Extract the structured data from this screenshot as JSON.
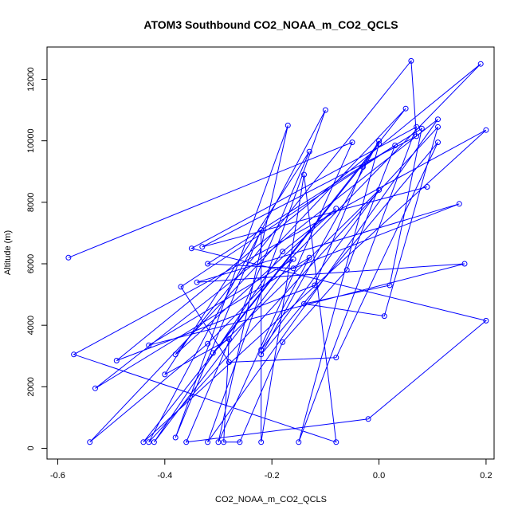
{
  "chart_data": {
    "type": "line",
    "title": "ATOM3 Southbound CO2_NOAA_m_CO2_QCLS",
    "xlabel": "CO2_NOAA_m_CO2_QCLS",
    "ylabel": "Altitude (m)",
    "xlim": [
      -0.62,
      0.215
    ],
    "ylim": [
      -350,
      13050
    ],
    "xticks": [
      -0.6,
      -0.4,
      -0.2,
      0.0,
      0.2
    ],
    "xtick_labels": [
      "-0.6",
      "-0.4",
      "-0.2",
      "0.0",
      "0.2"
    ],
    "yticks": [
      0,
      2000,
      4000,
      6000,
      8000,
      10000,
      12000
    ],
    "ytick_labels": [
      "0",
      "2000",
      "4000",
      "6000",
      "8000",
      "10000",
      "12000"
    ],
    "grid": false,
    "series": [
      {
        "color": "#0000ff",
        "marker": "open-circle",
        "points": [
          {
            "x": -0.58,
            "y": 6200
          },
          {
            "x": -0.05,
            "y": 9950
          },
          {
            "x": -0.3,
            "y": 200
          },
          {
            "x": -0.17,
            "y": 10500
          },
          {
            "x": -0.38,
            "y": 350
          },
          {
            "x": -0.22,
            "y": 7100
          },
          {
            "x": -0.22,
            "y": 200
          },
          {
            "x": -0.14,
            "y": 8900
          },
          {
            "x": -0.08,
            "y": 200
          },
          {
            "x": -0.57,
            "y": 3050
          },
          {
            "x": 0.2,
            "y": 10350
          },
          {
            "x": -0.44,
            "y": 200
          },
          {
            "x": 0.0,
            "y": 9900
          },
          {
            "x": -0.15,
            "y": 200
          },
          {
            "x": 0.07,
            "y": 10450
          },
          {
            "x": -0.35,
            "y": 6500
          },
          {
            "x": 0.2,
            "y": 4150
          },
          {
            "x": -0.02,
            "y": 950
          },
          {
            "x": -0.36,
            "y": 200
          },
          {
            "x": -0.13,
            "y": 9650
          },
          {
            "x": -0.4,
            "y": 2400
          },
          {
            "x": -0.28,
            "y": 3550
          },
          {
            "x": -0.29,
            "y": 200
          },
          {
            "x": -0.26,
            "y": 200
          },
          {
            "x": -0.18,
            "y": 3450
          },
          {
            "x": -0.06,
            "y": 5800
          },
          {
            "x": 0.03,
            "y": 9850
          },
          {
            "x": -0.37,
            "y": 5250
          },
          {
            "x": -0.28,
            "y": 2800
          },
          {
            "x": -0.08,
            "y": 2950
          },
          {
            "x": 0.11,
            "y": 9950
          },
          {
            "x": -0.22,
            "y": 3050
          },
          {
            "x": 0.0,
            "y": 10000
          },
          {
            "x": -0.03,
            "y": 9150
          },
          {
            "x": -0.12,
            "y": 5300
          },
          {
            "x": -0.49,
            "y": 2850
          },
          {
            "x": 0.19,
            "y": 12500
          },
          {
            "x": -0.32,
            "y": 3400
          },
          {
            "x": -0.54,
            "y": 200
          },
          {
            "x": 0.05,
            "y": 11050
          },
          {
            "x": -0.31,
            "y": 3100
          },
          {
            "x": 0.0,
            "y": 8400
          },
          {
            "x": -0.22,
            "y": 3200
          },
          {
            "x": -0.13,
            "y": 6200
          },
          {
            "x": -0.53,
            "y": 1950
          },
          {
            "x": 0.11,
            "y": 10700
          },
          {
            "x": -0.32,
            "y": 200
          },
          {
            "x": -0.1,
            "y": 11000
          },
          {
            "x": -0.43,
            "y": 200
          },
          {
            "x": 0.11,
            "y": 10450
          },
          {
            "x": 0.01,
            "y": 4300
          },
          {
            "x": -0.14,
            "y": 4700
          },
          {
            "x": 0.02,
            "y": 5300
          },
          {
            "x": 0.08,
            "y": 10400
          },
          {
            "x": -0.32,
            "y": 6000
          },
          {
            "x": -0.16,
            "y": 5850
          },
          {
            "x": 0.15,
            "y": 7950
          },
          {
            "x": -0.34,
            "y": 5400
          },
          {
            "x": 0.16,
            "y": 6000
          },
          {
            "x": -0.43,
            "y": 3350
          },
          {
            "x": -0.16,
            "y": 6150
          },
          {
            "x": -0.42,
            "y": 200
          },
          {
            "x": -0.18,
            "y": 6400
          },
          {
            "x": -0.08,
            "y": 7800
          },
          {
            "x": -0.38,
            "y": 3050
          },
          {
            "x": 0.06,
            "y": 12600
          },
          {
            "x": 0.07,
            "y": 10150
          },
          {
            "x": -0.33,
            "y": 6550
          },
          {
            "x": 0.09,
            "y": 8500
          }
        ]
      }
    ]
  }
}
